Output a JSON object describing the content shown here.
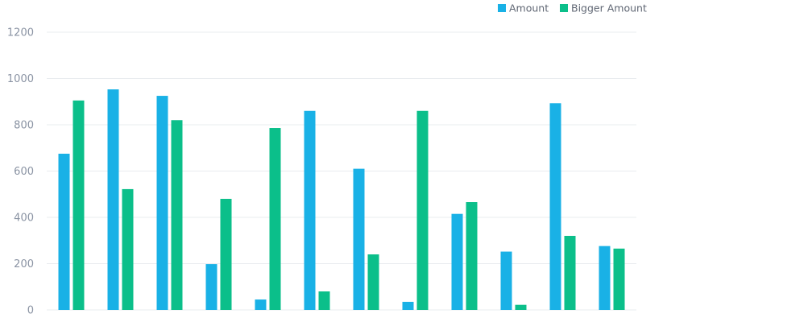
{
  "chart_data": {
    "type": "bar",
    "categories": [
      "",
      "",
      "",
      "",
      "",
      "",
      "",
      "",
      "",
      "",
      "",
      ""
    ],
    "series": [
      {
        "name": "Amount",
        "color": "#19b1e6",
        "values": [
          675,
          953,
          925,
          198,
          45,
          860,
          610,
          35,
          415,
          252,
          893,
          276
        ]
      },
      {
        "name": "Bigger Amount",
        "color": "#0bbf8a",
        "values": [
          905,
          522,
          820,
          480,
          786,
          80,
          240,
          860,
          466,
          22,
          320,
          265
        ]
      }
    ],
    "yticks": [
      0,
      200,
      400,
      600,
      800,
      1000,
      1200
    ],
    "ylim": [
      0,
      1200
    ],
    "grid": true,
    "legend_position": "top-right"
  }
}
